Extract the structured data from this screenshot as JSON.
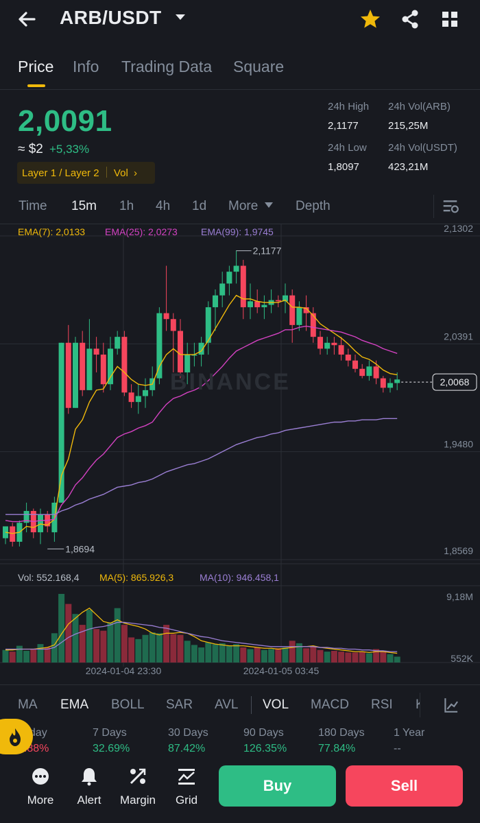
{
  "header": {
    "pair": "ARB/USDT",
    "icons": [
      "back-arrow-icon",
      "caret-down-icon",
      "star-icon",
      "share-icon",
      "grid-icon"
    ],
    "star_color": "#f0b90b"
  },
  "tabs": [
    "Price",
    "Info",
    "Trading Data",
    "Square"
  ],
  "price": {
    "last": "2,0091",
    "usd": "≈ $2",
    "change_pct": "+5,33%",
    "tags": "Layer 1 / Layer 2",
    "vol_tag": "Vol",
    "color_up": "#2ebd85",
    "color_down": "#f6465d"
  },
  "stats": {
    "high_label": "24h High",
    "high_value": "2,1177",
    "low_label": "24h Low",
    "low_value": "1,8097",
    "vol_arb_label": "24h Vol(ARB)",
    "vol_arb_value": "215,25M",
    "vol_usdt_label": "24h Vol(USDT)",
    "vol_usdt_value": "423,21M"
  },
  "timeframes": [
    "Time",
    "15m",
    "1h",
    "4h",
    "1d",
    "More",
    "Depth"
  ],
  "active_timeframe": "15m",
  "chart": {
    "ema_legend": [
      "EMA(7): 2,0133",
      "EMA(25): 2,0273",
      "EMA(99): 1,9745"
    ],
    "ema_colors": [
      "#f0b90b",
      "#d442c2",
      "#9b7fd4"
    ],
    "y_ticks": [
      "2,1302",
      "2,0391",
      "1,9480",
      "1,8569"
    ],
    "high_marker": "2,1177",
    "low_marker": "1,8694",
    "current_price_tag": "2,0068",
    "watermark": "BINANCE",
    "vol_legend": [
      "Vol: 552.168,4",
      "MA(5): 865.926,3",
      "MA(10): 946.458,1"
    ],
    "vol_ticks": [
      "9,18M",
      "552K"
    ],
    "x_labels": [
      "2024-01-04 23:30",
      "2024-01-05 03:45"
    ]
  },
  "chart_data": {
    "type": "candlestick",
    "ylim": [
      1.8569,
      2.1302
    ],
    "candles_ohlc": [
      [
        1.875,
        1.885,
        1.87,
        1.885
      ],
      [
        1.885,
        1.888,
        1.868,
        1.872
      ],
      [
        1.872,
        1.89,
        1.868,
        1.888
      ],
      [
        1.888,
        1.905,
        1.88,
        1.898
      ],
      [
        1.898,
        1.9,
        1.875,
        1.88
      ],
      [
        1.88,
        1.9,
        1.87,
        1.895
      ],
      [
        1.895,
        1.898,
        1.88,
        1.885
      ],
      [
        1.88,
        1.91,
        1.872,
        1.905
      ],
      [
        1.905,
        2.04,
        1.905,
        2.04
      ],
      [
        2.04,
        2.055,
        1.98,
        1.985
      ],
      [
        1.985,
        2.045,
        1.985,
        2.04
      ],
      [
        2.04,
        2.05,
        1.995,
        2.0
      ],
      [
        2.0,
        2.06,
        2.0,
        2.035
      ],
      [
        2.035,
        2.045,
        2.015,
        2.03
      ],
      [
        2.03,
        2.04,
        1.998,
        2.005
      ],
      [
        2.005,
        2.045,
        2.0,
        2.035
      ],
      [
        2.035,
        2.05,
        2.03,
        2.045
      ],
      [
        2.045,
        2.05,
        1.995,
        1.998
      ],
      [
        1.998,
        2.005,
        1.985,
        1.99
      ],
      [
        1.99,
        2.005,
        1.98,
        1.995
      ],
      [
        1.995,
        2.01,
        1.985,
        2.0
      ],
      [
        2.0,
        2.02,
        1.995,
        2.01
      ],
      [
        2.01,
        2.07,
        2.005,
        2.065
      ],
      [
        2.065,
        2.105,
        2.05,
        2.06
      ],
      [
        2.06,
        2.065,
        2.015,
        2.05
      ],
      [
        2.05,
        2.06,
        2.01,
        2.015
      ],
      [
        2.015,
        2.04,
        2.005,
        2.03
      ],
      [
        2.03,
        2.04,
        2.02,
        2.03
      ],
      [
        2.03,
        2.045,
        2.02,
        2.04
      ],
      [
        2.04,
        2.075,
        2.03,
        2.07
      ],
      [
        2.07,
        2.085,
        2.05,
        2.08
      ],
      [
        2.08,
        2.1,
        2.07,
        2.09
      ],
      [
        2.09,
        2.105,
        2.08,
        2.1
      ],
      [
        2.1,
        2.118,
        2.09,
        2.105
      ],
      [
        2.105,
        2.11,
        2.06,
        2.07
      ],
      [
        2.07,
        2.09,
        2.06,
        2.075
      ],
      [
        2.075,
        2.085,
        2.065,
        2.07
      ],
      [
        2.07,
        2.08,
        2.06,
        2.072
      ],
      [
        2.072,
        2.085,
        2.065,
        2.076
      ],
      [
        2.076,
        2.08,
        2.07,
        2.075
      ],
      [
        2.075,
        2.09,
        2.065,
        2.08
      ],
      [
        2.08,
        2.085,
        2.04,
        2.055
      ],
      [
        2.055,
        2.075,
        2.05,
        2.07
      ],
      [
        2.07,
        2.08,
        2.05,
        2.065
      ],
      [
        2.065,
        2.07,
        2.04,
        2.045
      ],
      [
        2.045,
        2.05,
        2.03,
        2.035
      ],
      [
        2.035,
        2.045,
        2.03,
        2.04
      ],
      [
        2.04,
        2.045,
        2.03,
        2.038
      ],
      [
        2.038,
        2.045,
        2.025,
        2.03
      ],
      [
        2.03,
        2.035,
        2.02,
        2.025
      ],
      [
        2.025,
        2.03,
        2.015,
        2.018
      ],
      [
        2.018,
        2.022,
        2.01,
        2.012
      ],
      [
        2.012,
        2.025,
        2.008,
        2.02
      ],
      [
        2.02,
        2.025,
        2.005,
        2.01
      ],
      [
        2.01,
        2.012,
        1.998,
        2.002
      ],
      [
        2.002,
        2.01,
        1.998,
        2.006
      ],
      [
        2.006,
        2.015,
        2.0,
        2.009
      ]
    ],
    "ema7": [
      1.88,
      1.879,
      1.88,
      1.885,
      1.884,
      1.887,
      1.886,
      1.891,
      1.928,
      1.942,
      1.967,
      1.975,
      1.99,
      2.0,
      2.001,
      2.011,
      2.02,
      2.015,
      2.009,
      2.005,
      2.004,
      2.005,
      2.02,
      2.03,
      2.035,
      2.03,
      2.03,
      2.03,
      2.033,
      2.042,
      2.052,
      2.062,
      2.072,
      2.08,
      2.077,
      2.077,
      2.075,
      2.074,
      2.074,
      2.074,
      2.076,
      2.07,
      2.07,
      2.069,
      2.063,
      2.056,
      2.052,
      2.048,
      2.044,
      2.039,
      2.033,
      2.028,
      2.026,
      2.022,
      2.017,
      2.014,
      2.013
    ],
    "ema25": [
      1.89,
      1.889,
      1.889,
      1.89,
      1.889,
      1.89,
      1.89,
      1.891,
      1.903,
      1.91,
      1.92,
      1.926,
      1.934,
      1.941,
      1.946,
      1.953,
      1.96,
      1.963,
      1.965,
      1.968,
      1.97,
      1.973,
      1.981,
      1.988,
      1.993,
      1.995,
      1.998,
      2.0,
      2.003,
      2.008,
      2.014,
      2.02,
      2.027,
      2.033,
      2.036,
      2.039,
      2.042,
      2.044,
      2.046,
      2.048,
      2.051,
      2.051,
      2.053,
      2.054,
      2.053,
      2.052,
      2.051,
      2.05,
      2.049,
      2.047,
      2.045,
      2.042,
      2.04,
      2.038,
      2.035,
      2.033,
      2.031
    ],
    "ema99": [
      1.895,
      1.895,
      1.895,
      1.895,
      1.895,
      1.895,
      1.895,
      1.895,
      1.898,
      1.9,
      1.903,
      1.905,
      1.908,
      1.91,
      1.912,
      1.915,
      1.918,
      1.919,
      1.92,
      1.922,
      1.923,
      1.925,
      1.928,
      1.931,
      1.933,
      1.935,
      1.937,
      1.938,
      1.94,
      1.942,
      1.945,
      1.948,
      1.951,
      1.954,
      1.956,
      1.958,
      1.96,
      1.961,
      1.963,
      1.964,
      1.966,
      1.967,
      1.968,
      1.969,
      1.97,
      1.971,
      1.972,
      1.973,
      1.973,
      1.974,
      1.974,
      1.975,
      1.975,
      1.975,
      1.976,
      1.976,
      1.976
    ],
    "volume_ylim": [
      0,
      9180000
    ],
    "volumes": [
      1.5,
      1.3,
      2.0,
      1.4,
      1.6,
      2.2,
      1.8,
      3.5,
      8.2,
      7.0,
      5.8,
      4.5,
      6.3,
      4.0,
      3.8,
      4.8,
      6.5,
      4.5,
      3.0,
      2.8,
      3.3,
      3.6,
      3.5,
      4.5,
      3.4,
      3.3,
      2.6,
      2.1,
      1.8,
      2.4,
      2.2,
      2.3,
      2.0,
      2.2,
      1.8,
      1.6,
      1.8,
      1.5,
      1.6,
      1.7,
      1.8,
      2.6,
      2.3,
      1.7,
      1.9,
      1.5,
      1.3,
      1.4,
      1.3,
      1.2,
      1.2,
      1.3,
      1.1,
      1.6,
      1.4,
      1.0,
      0.7
    ],
    "vol_ma5": [
      1.5,
      1.5,
      1.6,
      1.6,
      1.6,
      1.7,
      1.8,
      2.1,
      3.4,
      4.6,
      5.3,
      6.0,
      6.5,
      5.7,
      4.9,
      4.7,
      5.1,
      4.7,
      4.5,
      4.3,
      4.0,
      3.5,
      3.3,
      3.5,
      3.5,
      3.6,
      3.5,
      3.1,
      2.6,
      2.4,
      2.2,
      2.1,
      2.0,
      2.0,
      2.0,
      1.9,
      1.8,
      1.7,
      1.7,
      1.6,
      1.7,
      1.8,
      1.9,
      1.9,
      2.0,
      1.8,
      1.7,
      1.6,
      1.5,
      1.4,
      1.3,
      1.3,
      1.2,
      1.3,
      1.3,
      1.2,
      1.1
    ],
    "vol_ma10": [
      1.6,
      1.6,
      1.6,
      1.6,
      1.6,
      1.6,
      1.6,
      1.8,
      2.4,
      3.0,
      3.4,
      3.7,
      4.0,
      4.2,
      4.3,
      4.5,
      4.8,
      4.8,
      4.7,
      4.6,
      4.5,
      4.4,
      4.2,
      4.1,
      3.9,
      3.7,
      3.5,
      3.3,
      3.1,
      3.0,
      2.8,
      2.6,
      2.5,
      2.4,
      2.3,
      2.2,
      2.1,
      2.0,
      1.9,
      1.9,
      1.9,
      1.9,
      1.9,
      1.9,
      1.9,
      1.8,
      1.8,
      1.7,
      1.7,
      1.6,
      1.6,
      1.5,
      1.5,
      1.4,
      1.4,
      1.3,
      1.3
    ]
  },
  "indicators": [
    "MA",
    "EMA",
    "BOLL",
    "SAR",
    "AVL",
    "VOL",
    "MACD",
    "RSI",
    "K"
  ],
  "active_indicators": [
    "EMA",
    "VOL"
  ],
  "performance": [
    {
      "label": "Today",
      "value": "5.88%",
      "dir": "down"
    },
    {
      "label": "7 Days",
      "value": "32.69%",
      "dir": "up"
    },
    {
      "label": "30 Days",
      "value": "87.42%",
      "dir": "up"
    },
    {
      "label": "90 Days",
      "value": "126.35%",
      "dir": "up"
    },
    {
      "label": "180 Days",
      "value": "77.84%",
      "dir": "up"
    },
    {
      "label": "1 Year",
      "value": "--",
      "dir": "none"
    }
  ],
  "bottom_bar": {
    "more": "More",
    "alert": "Alert",
    "margin": "Margin",
    "grid": "Grid",
    "buy": "Buy",
    "sell": "Sell"
  }
}
